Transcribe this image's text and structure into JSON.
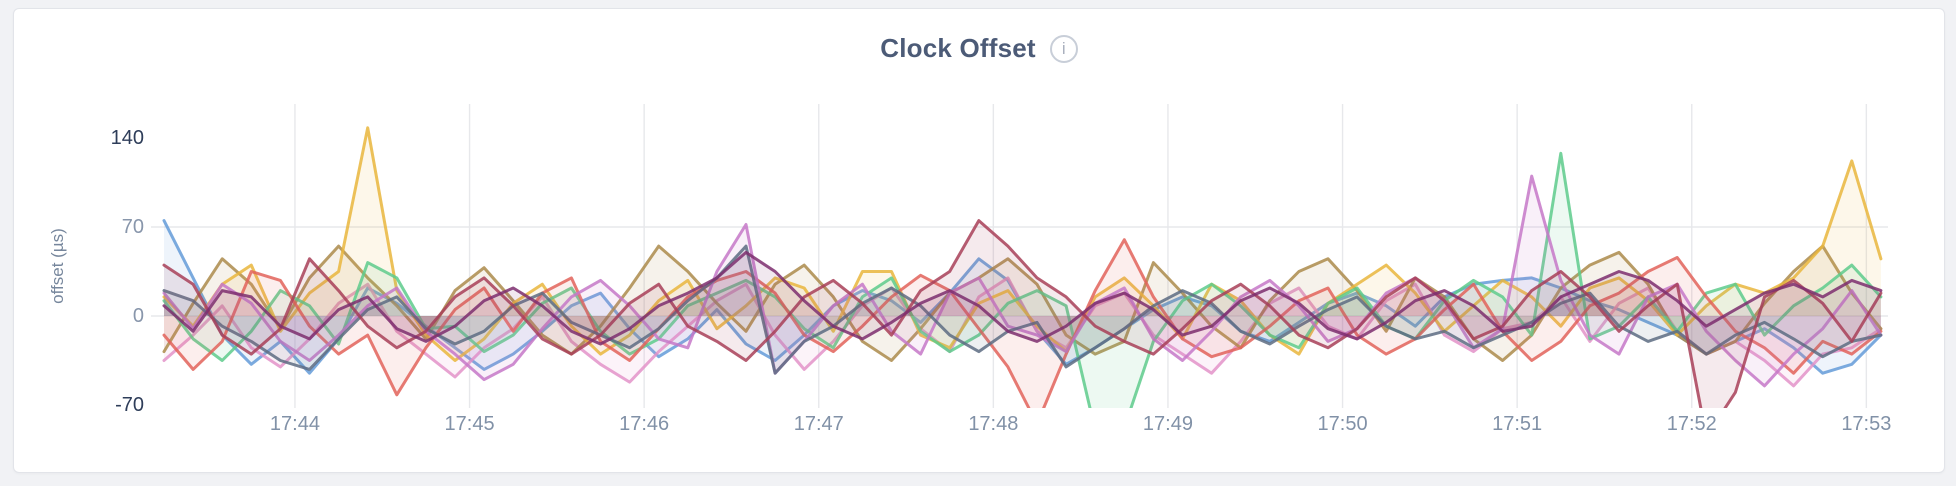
{
  "page": {
    "background_color": "#f1f2f5"
  },
  "panel": {
    "title": "Clock Offset",
    "info_icon_glyph": "i"
  },
  "styles": {
    "title_color": "#4c5b77",
    "axis_title_color": "#76869c",
    "tick_color_weak": "#8896ab",
    "tick_color_strong": "#2e3d59",
    "x_tick_color": "#8191a7",
    "grid_color": "#e7e8eb",
    "card_background": "#ffffff"
  },
  "chart_data": {
    "type": "line",
    "title": "Clock Offset",
    "xlabel": "",
    "ylabel": "offset (µs)",
    "legend": "none",
    "grid": "on",
    "ylim": [
      -72,
      165
    ],
    "y_ticks": [
      140,
      70,
      0,
      -70
    ],
    "y_tick_emphasis": [
      "strong",
      "weak",
      "weak",
      "strong"
    ],
    "y_gridline_values": [
      70,
      0
    ],
    "x_tick_labels": [
      "17:44",
      "17:45",
      "17:46",
      "17:47",
      "17:48",
      "17:49",
      "17:50",
      "17:51",
      "17:52",
      "17:53"
    ],
    "x_start_label": "17:43:15",
    "x_interval_seconds": 10,
    "points_per_series": 60,
    "series": [
      {
        "name": "series-1-blue",
        "color": "#649bd8",
        "values": [
          75,
          30,
          -15,
          -38,
          -20,
          -45,
          -18,
          22,
          10,
          -8,
          -25,
          -42,
          -30,
          -12,
          8,
          18,
          -10,
          -32,
          -18,
          5,
          -22,
          -35,
          -15,
          8,
          20,
          12,
          -5,
          18,
          45,
          28,
          -12,
          -38,
          -25,
          -10,
          5,
          15,
          8,
          -12,
          -20,
          -5,
          10,
          18,
          8,
          -8,
          15,
          25,
          28,
          30,
          22,
          12,
          5,
          -5,
          -15,
          -30,
          -20,
          -10,
          -25,
          -45,
          -38,
          -15
        ]
      },
      {
        "name": "series-2-pink",
        "color": "#e393c9",
        "values": [
          -35,
          -15,
          8,
          -25,
          -40,
          -18,
          10,
          25,
          -12,
          -30,
          -48,
          -25,
          -10,
          15,
          -20,
          -38,
          -52,
          -28,
          -8,
          12,
          25,
          -15,
          -42,
          -20,
          8,
          22,
          -10,
          -28,
          15,
          30,
          -12,
          -25,
          8,
          18,
          -15,
          -30,
          -45,
          -20,
          10,
          22,
          -8,
          -18,
          12,
          25,
          -15,
          -28,
          -10,
          -5,
          15,
          -20,
          10,
          22,
          -12,
          -30,
          -20,
          -35,
          -55,
          -30,
          -25,
          -10
        ]
      },
      {
        "name": "series-3-khaki",
        "color": "#ab8b4b",
        "values": [
          -28,
          10,
          45,
          25,
          -10,
          30,
          55,
          30,
          8,
          -18,
          20,
          38,
          12,
          -15,
          -30,
          -8,
          22,
          55,
          35,
          10,
          -12,
          25,
          40,
          15,
          -20,
          -35,
          -10,
          18,
          30,
          45,
          25,
          -15,
          -30,
          -20,
          42,
          18,
          -8,
          -25,
          12,
          35,
          45,
          20,
          -12,
          30,
          15,
          -18,
          -35,
          -15,
          22,
          40,
          50,
          25,
          -15,
          -30,
          -20,
          10,
          35,
          55,
          18,
          -10
        ]
      },
      {
        "name": "series-4-gold",
        "color": "#e9b63d",
        "values": [
          15,
          -8,
          25,
          40,
          -12,
          18,
          35,
          148,
          20,
          -15,
          -35,
          -18,
          10,
          25,
          -8,
          -30,
          -15,
          12,
          28,
          -10,
          8,
          30,
          22,
          -12,
          35,
          35,
          -15,
          -25,
          10,
          20,
          -8,
          -28,
          15,
          30,
          8,
          -18,
          25,
          12,
          -15,
          -30,
          10,
          25,
          40,
          18,
          -12,
          8,
          28,
          15,
          -8,
          22,
          30,
          12,
          -15,
          8,
          25,
          18,
          30,
          55,
          122,
          45
        ]
      },
      {
        "name": "series-5-green",
        "color": "#5ecb8c",
        "values": [
          12,
          -18,
          -35,
          -12,
          20,
          8,
          -22,
          42,
          30,
          -10,
          -8,
          -28,
          -15,
          10,
          22,
          -12,
          -30,
          -18,
          8,
          18,
          28,
          15,
          -10,
          -25,
          15,
          30,
          -12,
          -28,
          -15,
          10,
          20,
          8,
          -90,
          -88,
          -20,
          12,
          25,
          8,
          -15,
          -25,
          10,
          22,
          -8,
          -18,
          12,
          28,
          15,
          -15,
          128,
          -18,
          -8,
          15,
          -12,
          18,
          25,
          -15,
          8,
          22,
          40,
          15
        ]
      },
      {
        "name": "series-6-red",
        "color": "#e2635b",
        "values": [
          -15,
          -42,
          -20,
          35,
          28,
          -8,
          -30,
          -15,
          -62,
          -25,
          5,
          22,
          -12,
          18,
          30,
          -20,
          -35,
          -10,
          15,
          28,
          35,
          18,
          -15,
          -28,
          -8,
          15,
          32,
          20,
          -10,
          -40,
          -85,
          -30,
          20,
          60,
          15,
          -18,
          -32,
          -25,
          -8,
          12,
          22,
          -15,
          -30,
          -18,
          5,
          25,
          -12,
          -35,
          -20,
          8,
          18,
          35,
          46,
          15,
          -12,
          -25,
          -45,
          -20,
          -30,
          -12
        ]
      },
      {
        "name": "series-7-orchid",
        "color": "#c678c8",
        "values": [
          18,
          -10,
          25,
          10,
          -20,
          -35,
          -15,
          8,
          22,
          -12,
          -30,
          -50,
          -38,
          -10,
          15,
          28,
          8,
          -18,
          -25,
          35,
          72,
          -45,
          -20,
          8,
          25,
          -12,
          -30,
          18,
          30,
          -8,
          -15,
          -28,
          10,
          22,
          -18,
          -35,
          -12,
          15,
          28,
          8,
          -20,
          -10,
          18,
          30,
          12,
          -25,
          -10,
          110,
          28,
          -15,
          -30,
          15,
          25,
          -12,
          -35,
          -55,
          -30,
          -10,
          20,
          -15
        ]
      },
      {
        "name": "series-8-slate",
        "color": "#5d6c83",
        "values": [
          20,
          12,
          -8,
          -20,
          -35,
          -42,
          -18,
          5,
          15,
          -10,
          -22,
          -12,
          8,
          18,
          -5,
          -15,
          -25,
          -10,
          12,
          30,
          55,
          -45,
          -20,
          -8,
          10,
          22,
          8,
          -15,
          -28,
          -12,
          -5,
          -40,
          -25,
          -10,
          8,
          20,
          10,
          -12,
          -22,
          -8,
          5,
          15,
          -8,
          -18,
          -12,
          -25,
          -15,
          -5,
          10,
          18,
          -8,
          -20,
          -12,
          -30,
          -15,
          -5,
          -18,
          -32,
          -20,
          -15
        ]
      },
      {
        "name": "series-9-wine",
        "color": "#a83f58",
        "values": [
          40,
          25,
          -15,
          -30,
          -10,
          45,
          20,
          -8,
          -25,
          -12,
          15,
          30,
          8,
          -18,
          -30,
          -15,
          10,
          25,
          -8,
          -20,
          -35,
          -12,
          15,
          28,
          10,
          -15,
          20,
          35,
          75,
          55,
          30,
          15,
          -8,
          -20,
          -30,
          -10,
          12,
          25,
          8,
          -15,
          -25,
          -10,
          15,
          30,
          12,
          -18,
          -8,
          20,
          35,
          15,
          -12,
          8,
          25,
          -95,
          -60,
          15,
          28,
          10,
          -20,
          18
        ]
      },
      {
        "name": "series-10-purple",
        "color": "#7c2e6e",
        "values": [
          8,
          -12,
          20,
          15,
          -8,
          -18,
          5,
          15,
          -10,
          -20,
          -8,
          12,
          22,
          8,
          -12,
          -22,
          -10,
          8,
          18,
          30,
          50,
          35,
          12,
          -8,
          -18,
          -5,
          10,
          20,
          8,
          -12,
          -20,
          -8,
          10,
          18,
          5,
          -15,
          -8,
          12,
          22,
          10,
          -10,
          -18,
          -5,
          12,
          20,
          8,
          -12,
          -8,
          15,
          25,
          35,
          28,
          12,
          -8,
          5,
          18,
          25,
          15,
          28,
          20
        ]
      }
    ]
  }
}
